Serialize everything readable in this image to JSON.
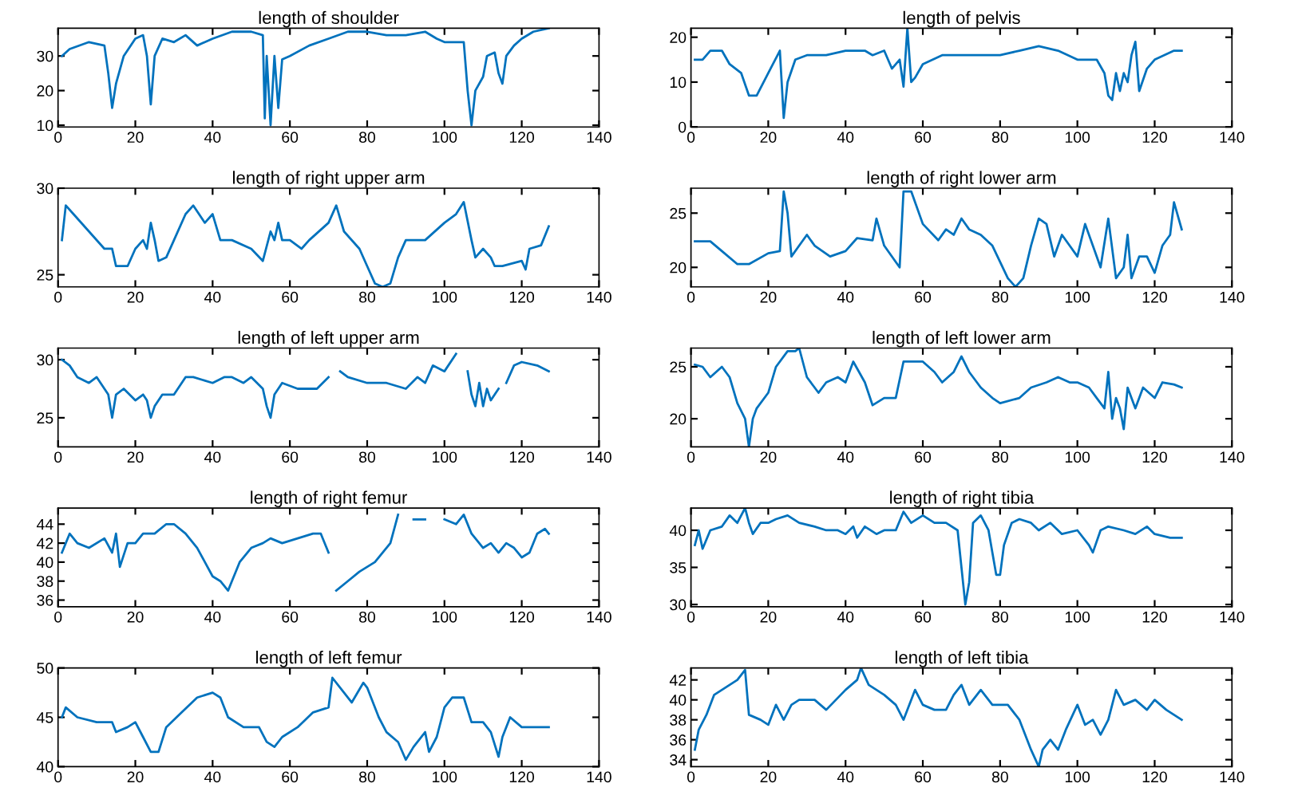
{
  "chart_data": [
    {
      "type": "line",
      "title": "length of shoulder",
      "color": "#0072bd",
      "xlim": [
        0,
        140
      ],
      "xticks": [
        0,
        20,
        40,
        60,
        80,
        100,
        120,
        140
      ],
      "ylim": [
        9.5,
        38
      ],
      "yticks": [
        10,
        20,
        30
      ],
      "grid": false,
      "x": [
        1,
        3,
        8,
        12,
        13,
        14,
        15,
        17,
        20,
        22,
        23,
        24,
        25,
        27,
        30,
        33,
        36,
        40,
        45,
        50,
        53,
        53.5,
        54,
        55,
        56,
        57,
        58,
        60,
        65,
        70,
        75,
        80,
        85,
        90,
        95,
        98,
        100,
        105,
        106,
        107,
        108,
        110,
        111,
        113,
        114,
        115,
        116,
        118,
        120,
        123,
        127
      ],
      "values": [
        30,
        32,
        34,
        33,
        25,
        15,
        22,
        30,
        35,
        36,
        30,
        16,
        30,
        35,
        34,
        36,
        33,
        35,
        37,
        37,
        36,
        12,
        30,
        10,
        30,
        15,
        29,
        30,
        33,
        35,
        37,
        37,
        36,
        36,
        37,
        35,
        34,
        34,
        20,
        10,
        20,
        24,
        30,
        31,
        25,
        22,
        30,
        33,
        35,
        37,
        38
      ]
    },
    {
      "type": "line",
      "title": "length of pelvis",
      "color": "#0072bd",
      "xlim": [
        0,
        140
      ],
      "xticks": [
        0,
        20,
        40,
        60,
        80,
        100,
        120,
        140
      ],
      "ylim": [
        0,
        22
      ],
      "yticks": [
        0,
        10,
        20
      ],
      "grid": false,
      "x": [
        1,
        3,
        5,
        8,
        10,
        13,
        15,
        17,
        20,
        23,
        24,
        25,
        27,
        30,
        35,
        40,
        45,
        47,
        50,
        52,
        54,
        55,
        56,
        57,
        58,
        60,
        65,
        70,
        75,
        80,
        85,
        90,
        95,
        100,
        105,
        107,
        108,
        109,
        110,
        111,
        112,
        113,
        114,
        115,
        116,
        118,
        120,
        125,
        127
      ],
      "values": [
        15,
        15,
        17,
        17,
        14,
        12,
        7,
        7,
        12,
        17,
        2,
        10,
        15,
        16,
        16,
        17,
        17,
        16,
        17,
        13,
        15,
        9,
        22,
        10,
        11,
        14,
        16,
        16,
        16,
        16,
        17,
        18,
        17,
        15,
        15,
        12,
        7,
        6,
        12,
        8,
        12,
        10,
        16,
        19,
        8,
        13,
        15,
        17,
        17
      ]
    },
    {
      "type": "line",
      "title": "length of right upper arm",
      "color": "#0072bd",
      "xlim": [
        0,
        140
      ],
      "xticks": [
        0,
        20,
        40,
        60,
        80,
        100,
        120,
        140
      ],
      "ylim": [
        24.3,
        30
      ],
      "yticks": [
        25,
        30
      ],
      "grid": false,
      "x": [
        1,
        2,
        4,
        8,
        12,
        14,
        15,
        18,
        20,
        22,
        23,
        24,
        25,
        26,
        28,
        30,
        33,
        35,
        38,
        40,
        42,
        45,
        50,
        53,
        55,
        56,
        57,
        58,
        60,
        63,
        65,
        70,
        72,
        74,
        78,
        80,
        82,
        84,
        86,
        88,
        90,
        95,
        100,
        103,
        105,
        107,
        108,
        110,
        112,
        113,
        115,
        120,
        121,
        122,
        125,
        127
      ],
      "values": [
        27,
        29,
        28.5,
        27.5,
        26.5,
        26.5,
        25.5,
        25.5,
        26.5,
        27,
        26.5,
        28,
        27,
        25.8,
        26,
        27,
        28.5,
        29,
        28,
        28.5,
        27,
        27,
        26.5,
        25.8,
        27.5,
        27,
        28,
        27,
        27,
        26.5,
        27,
        28,
        29,
        27.5,
        26.5,
        25.5,
        24.5,
        24.3,
        24.5,
        26,
        27,
        27,
        28,
        28.5,
        29.2,
        27,
        26,
        26.5,
        26,
        25.5,
        25.5,
        25.8,
        25.3,
        26.5,
        26.7,
        27.8
      ]
    },
    {
      "type": "line",
      "title": "length of right lower arm",
      "color": "#0072bd",
      "xlim": [
        0,
        140
      ],
      "xticks": [
        0,
        20,
        40,
        60,
        80,
        100,
        120,
        140
      ],
      "ylim": [
        18.2,
        27.3
      ],
      "yticks": [
        20,
        25
      ],
      "grid": false,
      "x": [
        1,
        5,
        8,
        12,
        15,
        20,
        23,
        24,
        25,
        26,
        28,
        30,
        32,
        36,
        40,
        43,
        47,
        48,
        50,
        53,
        54,
        55,
        57,
        60,
        64,
        66,
        68,
        70,
        72,
        75,
        78,
        82,
        84,
        86,
        88,
        90,
        92,
        94,
        96,
        98,
        100,
        102,
        104,
        106,
        108,
        110,
        112,
        113,
        114,
        116,
        118,
        120,
        122,
        124,
        125,
        127
      ],
      "values": [
        22.4,
        22.4,
        21.5,
        20.3,
        20.3,
        21.3,
        21.5,
        27,
        25,
        21,
        22,
        23,
        22,
        21,
        21.5,
        22.7,
        22.5,
        24.5,
        22,
        20.5,
        20,
        27,
        27,
        24,
        22.5,
        23.5,
        23,
        24.5,
        23.5,
        23,
        22,
        19,
        18.2,
        19,
        22,
        24.5,
        24,
        21,
        23,
        22,
        21,
        24,
        22,
        20,
        24.5,
        19,
        20,
        23,
        19,
        21,
        21,
        19.5,
        22,
        23,
        26,
        23.5
      ]
    },
    {
      "type": "line",
      "title": "length of left upper arm",
      "color": "#0072bd",
      "xlim": [
        0,
        140
      ],
      "xticks": [
        0,
        20,
        40,
        60,
        80,
        100,
        120,
        140
      ],
      "ylim": [
        22.5,
        31
      ],
      "yticks": [
        25,
        30
      ],
      "grid": false,
      "x": [
        1,
        3,
        5,
        8,
        10,
        12,
        13,
        14,
        15,
        17,
        20,
        22,
        23,
        24,
        25,
        27,
        30,
        33,
        35,
        40,
        43,
        45,
        48,
        50,
        53,
        54,
        55,
        56,
        58,
        62,
        67,
        70,
        71,
        73,
        75,
        80,
        85,
        90,
        93,
        95,
        97,
        100,
        103,
        105,
        106,
        107,
        108,
        109,
        110,
        111,
        112,
        114,
        115,
        116,
        118,
        120,
        124,
        127
      ],
      "values": [
        30,
        29.5,
        28.5,
        28,
        28.5,
        27.5,
        27,
        25,
        27,
        27.5,
        26.5,
        27,
        26.5,
        25,
        26,
        27,
        27,
        28.5,
        28.5,
        28,
        28.5,
        28.5,
        28,
        28.5,
        27.5,
        26,
        25,
        27,
        28,
        27.5,
        27.5,
        28.5,
        null,
        29,
        28.5,
        28,
        28,
        27.5,
        28.5,
        28,
        29.5,
        29,
        30.5,
        null,
        29,
        27,
        26,
        28,
        26,
        27.5,
        26.5,
        27.5,
        null,
        28,
        29.5,
        29.8,
        29.5,
        29
      ]
    },
    {
      "type": "line",
      "title": "length of left lower arm",
      "color": "#0072bd",
      "xlim": [
        0,
        140
      ],
      "xticks": [
        0,
        20,
        40,
        60,
        80,
        100,
        120,
        140
      ],
      "ylim": [
        17.3,
        26.8
      ],
      "yticks": [
        20,
        25
      ],
      "grid": false,
      "x": [
        1,
        3,
        5,
        8,
        10,
        12,
        14,
        15,
        16,
        17,
        20,
        22,
        25,
        27,
        28,
        30,
        33,
        35,
        38,
        40,
        42,
        45,
        47,
        50,
        53,
        55,
        60,
        63,
        65,
        68,
        70,
        72,
        75,
        78,
        80,
        85,
        88,
        92,
        95,
        98,
        100,
        103,
        105,
        107,
        108,
        109,
        110,
        111,
        112,
        113,
        115,
        117,
        120,
        122,
        125,
        127
      ],
      "values": [
        25.2,
        25,
        24,
        25,
        24,
        21.5,
        20,
        17.3,
        20,
        21,
        22.5,
        25,
        26.5,
        26.5,
        26.8,
        24,
        22.5,
        23.5,
        24,
        23.5,
        25.5,
        23.5,
        21.3,
        22,
        22,
        25.5,
        25.5,
        24.5,
        23.5,
        24.5,
        26,
        24.5,
        23,
        22,
        21.5,
        22,
        23,
        23.5,
        24,
        23.5,
        23.5,
        23,
        22,
        21,
        24.5,
        20,
        22,
        21,
        19,
        23,
        21,
        23,
        22,
        23.5,
        23.3,
        23
      ]
    },
    {
      "type": "line",
      "title": "length of right femur",
      "color": "#0072bd",
      "xlim": [
        0,
        140
      ],
      "xticks": [
        0,
        20,
        40,
        60,
        80,
        100,
        120,
        140
      ],
      "ylim": [
        35.3,
        45.7
      ],
      "yticks": [
        36,
        38,
        40,
        42,
        44
      ],
      "grid": false,
      "x": [
        1,
        3,
        5,
        8,
        12,
        14,
        15,
        16,
        18,
        20,
        22,
        25,
        28,
        30,
        33,
        36,
        38,
        40,
        42,
        44,
        45,
        47,
        50,
        53,
        55,
        58,
        62,
        66,
        68,
        70,
        71,
        72,
        75,
        78,
        80,
        82,
        86,
        88,
        90,
        92,
        95,
        97,
        100,
        103,
        105,
        107,
        110,
        112,
        114,
        116,
        118,
        120,
        122,
        124,
        126,
        127
      ],
      "values": [
        41,
        43,
        42,
        41.5,
        42.5,
        41,
        43,
        39.5,
        42,
        42,
        43,
        43,
        44,
        44,
        43,
        41.5,
        40,
        38.5,
        38,
        37,
        38,
        40,
        41.5,
        42,
        42.5,
        42,
        42.5,
        43,
        43,
        41,
        null,
        37,
        38,
        39,
        39.5,
        40,
        42,
        45,
        null,
        44.5,
        44.5,
        null,
        44.5,
        44,
        45,
        43,
        41.5,
        42,
        41,
        42,
        41.5,
        40.5,
        41,
        43,
        43.5,
        43
      ]
    },
    {
      "type": "line",
      "title": "length of right tibia",
      "color": "#0072bd",
      "xlim": [
        0,
        140
      ],
      "xticks": [
        0,
        20,
        40,
        60,
        80,
        100,
        120,
        140
      ],
      "ylim": [
        29.7,
        43
      ],
      "yticks": [
        30,
        35,
        40
      ],
      "grid": false,
      "x": [
        1,
        2,
        3,
        5,
        8,
        10,
        12,
        14,
        15,
        16,
        18,
        20,
        22,
        25,
        28,
        32,
        35,
        38,
        40,
        42,
        43,
        45,
        48,
        50,
        53,
        55,
        57,
        60,
        63,
        66,
        69,
        70,
        71,
        72,
        73,
        75,
        77,
        78,
        79,
        80,
        81,
        83,
        85,
        88,
        90,
        93,
        96,
        100,
        103,
        104,
        106,
        108,
        112,
        115,
        118,
        120,
        124,
        127
      ],
      "values": [
        38,
        40,
        37.5,
        40,
        40.5,
        42,
        41,
        43,
        41,
        39.5,
        41,
        41,
        41.5,
        42,
        41,
        40.5,
        40,
        40,
        39.5,
        40.5,
        39,
        40.5,
        39.5,
        40,
        40,
        42.5,
        41,
        42,
        41,
        41,
        40,
        35,
        30,
        33,
        41,
        42,
        40,
        37,
        34,
        34,
        38,
        41,
        41.5,
        41,
        40,
        41,
        39.5,
        40,
        38,
        37,
        40,
        40.5,
        40,
        39.5,
        40.5,
        39.5,
        39,
        39
      ]
    },
    {
      "type": "line",
      "title": "length of left femur",
      "color": "#0072bd",
      "xlim": [
        0,
        140
      ],
      "xticks": [
        0,
        20,
        40,
        60,
        80,
        100,
        120,
        140
      ],
      "ylim": [
        40,
        50
      ],
      "yticks": [
        40,
        45,
        50
      ],
      "grid": false,
      "x": [
        1,
        2,
        5,
        10,
        14,
        15,
        18,
        20,
        22,
        24,
        26,
        28,
        32,
        36,
        40,
        42,
        44,
        48,
        52,
        54,
        56,
        58,
        62,
        66,
        70,
        71,
        73,
        76,
        79,
        80,
        83,
        85,
        88,
        90,
        92,
        95,
        96,
        98,
        100,
        102,
        105,
        107,
        110,
        112,
        114,
        115,
        117,
        120,
        125,
        127
      ],
      "values": [
        45,
        46,
        45,
        44.5,
        44.5,
        43.5,
        44,
        44.5,
        43,
        41.5,
        41.5,
        44,
        45.5,
        47,
        47.5,
        47,
        45,
        44,
        44,
        42.5,
        42,
        43,
        44,
        45.5,
        46,
        49,
        48,
        46.5,
        48.5,
        48,
        45,
        43.5,
        42.5,
        40.7,
        42,
        43.5,
        41.5,
        43,
        46,
        47,
        47,
        44.5,
        44.5,
        43.5,
        41,
        43,
        45,
        44,
        44,
        44
      ]
    },
    {
      "type": "line",
      "title": "length of left tibia",
      "color": "#0072bd",
      "xlim": [
        0,
        140
      ],
      "xticks": [
        0,
        20,
        40,
        60,
        80,
        100,
        120,
        140
      ],
      "ylim": [
        33.3,
        43.2
      ],
      "yticks": [
        34,
        36,
        38,
        40,
        42
      ],
      "grid": false,
      "x": [
        1,
        2,
        4,
        6,
        8,
        12,
        14,
        15,
        18,
        20,
        22,
        24,
        26,
        28,
        32,
        35,
        40,
        43,
        44,
        46,
        50,
        53,
        55,
        58,
        60,
        63,
        66,
        68,
        70,
        72,
        75,
        78,
        82,
        85,
        88,
        90,
        91,
        93,
        95,
        97,
        100,
        102,
        104,
        106,
        108,
        110,
        112,
        115,
        118,
        120,
        123,
        125,
        127
      ],
      "values": [
        35,
        37,
        38.5,
        40.5,
        41,
        42,
        43,
        38.5,
        38,
        37.5,
        39.5,
        38,
        39.5,
        40,
        40,
        39,
        41,
        42,
        43.2,
        41.5,
        40.5,
        39.5,
        38,
        41,
        39.5,
        39,
        39,
        40.5,
        41.5,
        39.5,
        41,
        39.5,
        39.5,
        38,
        35,
        33.3,
        35,
        36,
        35,
        37,
        39.5,
        37.5,
        38,
        36.5,
        38,
        41,
        39.5,
        40,
        39,
        40,
        39,
        38.5,
        38
      ]
    }
  ]
}
